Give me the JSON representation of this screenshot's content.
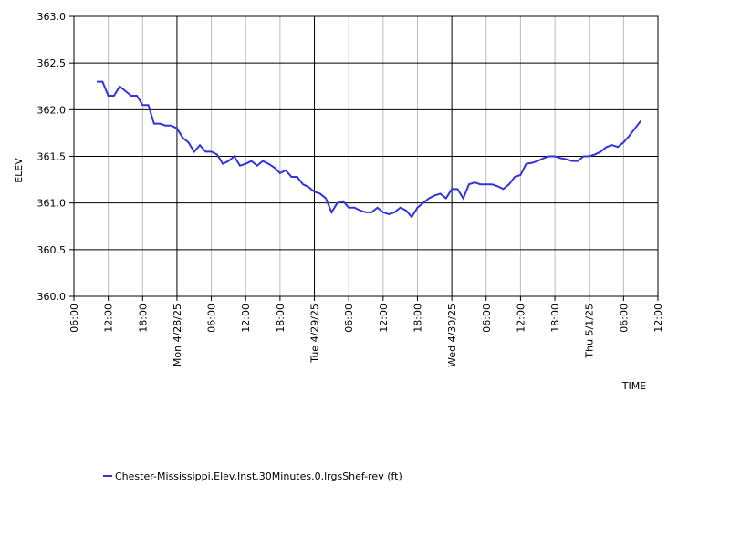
{
  "chart_data": {
    "type": "line",
    "x_label": "TIME",
    "y_label": "ELEV",
    "x": [
      "2025-04-27T10:00",
      "2025-04-27T11:00",
      "2025-04-27T12:00",
      "2025-04-27T13:00",
      "2025-04-27T14:00",
      "2025-04-27T15:00",
      "2025-04-27T16:00",
      "2025-04-27T17:00",
      "2025-04-27T18:00",
      "2025-04-27T19:00",
      "2025-04-27T20:00",
      "2025-04-27T21:00",
      "2025-04-27T22:00",
      "2025-04-27T23:00",
      "2025-04-28T00:00",
      "2025-04-28T01:00",
      "2025-04-28T02:00",
      "2025-04-28T03:00",
      "2025-04-28T04:00",
      "2025-04-28T05:00",
      "2025-04-28T06:00",
      "2025-04-28T07:00",
      "2025-04-28T08:00",
      "2025-04-28T09:00",
      "2025-04-28T10:00",
      "2025-04-28T11:00",
      "2025-04-28T12:00",
      "2025-04-28T13:00",
      "2025-04-28T14:00",
      "2025-04-28T15:00",
      "2025-04-28T16:00",
      "2025-04-28T17:00",
      "2025-04-28T18:00",
      "2025-04-28T19:00",
      "2025-04-28T20:00",
      "2025-04-28T21:00",
      "2025-04-28T22:00",
      "2025-04-28T23:00",
      "2025-04-29T00:00",
      "2025-04-29T01:00",
      "2025-04-29T02:00",
      "2025-04-29T03:00",
      "2025-04-29T04:00",
      "2025-04-29T05:00",
      "2025-04-29T06:00",
      "2025-04-29T07:00",
      "2025-04-29T08:00",
      "2025-04-29T09:00",
      "2025-04-29T10:00",
      "2025-04-29T11:00",
      "2025-04-29T12:00",
      "2025-04-29T13:00",
      "2025-04-29T14:00",
      "2025-04-29T15:00",
      "2025-04-29T16:00",
      "2025-04-29T17:00",
      "2025-04-29T18:00",
      "2025-04-29T19:00",
      "2025-04-29T20:00",
      "2025-04-29T21:00",
      "2025-04-29T22:00",
      "2025-04-29T23:00",
      "2025-04-30T00:00",
      "2025-04-30T01:00",
      "2025-04-30T02:00",
      "2025-04-30T03:00",
      "2025-04-30T04:00",
      "2025-04-30T05:00",
      "2025-04-30T06:00",
      "2025-04-30T07:00",
      "2025-04-30T08:00",
      "2025-04-30T09:00",
      "2025-04-30T10:00",
      "2025-04-30T11:00",
      "2025-04-30T12:00",
      "2025-04-30T13:00",
      "2025-04-30T14:00",
      "2025-04-30T15:00",
      "2025-04-30T16:00",
      "2025-04-30T17:00",
      "2025-04-30T18:00",
      "2025-04-30T19:00",
      "2025-04-30T20:00",
      "2025-04-30T21:00",
      "2025-04-30T22:00",
      "2025-04-30T23:00",
      "2025-05-01T00:00",
      "2025-05-01T01:00",
      "2025-05-01T02:00",
      "2025-05-01T03:00",
      "2025-05-01T04:00",
      "2025-05-01T05:00",
      "2025-05-01T06:00",
      "2025-05-01T07:00",
      "2025-05-01T08:00",
      "2025-05-01T09:00"
    ],
    "series": [
      {
        "name": "Chester-Mississippi.Elev.Inst.30Minutes.0.lrgsShef-rev (ft)",
        "color": "#3333dd",
        "values": [
          362.3,
          362.3,
          362.15,
          362.15,
          362.25,
          362.2,
          362.15,
          362.15,
          362.05,
          362.05,
          361.85,
          361.85,
          361.83,
          361.83,
          361.8,
          361.7,
          361.65,
          361.55,
          361.62,
          361.55,
          361.55,
          361.52,
          361.42,
          361.45,
          361.5,
          361.4,
          361.42,
          361.45,
          361.4,
          361.45,
          361.42,
          361.38,
          361.32,
          361.35,
          361.28,
          361.28,
          361.2,
          361.17,
          361.12,
          361.1,
          361.05,
          360.9,
          361.0,
          361.02,
          360.95,
          360.95,
          360.92,
          360.9,
          360.9,
          360.95,
          360.9,
          360.88,
          360.9,
          360.95,
          360.92,
          360.85,
          360.95,
          361.0,
          361.05,
          361.08,
          361.1,
          361.05,
          361.15,
          361.15,
          361.05,
          361.2,
          361.22,
          361.2,
          361.2,
          361.2,
          361.18,
          361.15,
          361.2,
          361.28,
          361.3,
          361.42,
          361.43,
          361.45,
          361.48,
          361.5,
          361.5,
          361.48,
          361.47,
          361.45,
          361.45,
          361.5,
          361.5,
          361.52,
          361.55,
          361.6,
          361.62,
          361.6,
          361.65,
          361.72,
          361.8,
          361.88
        ]
      }
    ],
    "xlim": [
      "2025-04-27T06:00",
      "2025-05-01T12:00"
    ],
    "xticks": [
      {
        "value": "2025-04-27T06:00",
        "label": "06:00"
      },
      {
        "value": "2025-04-27T12:00",
        "label": "12:00"
      },
      {
        "value": "2025-04-27T18:00",
        "label": "18:00"
      },
      {
        "value": "2025-04-28T00:00",
        "label": "Mon 4/28/25"
      },
      {
        "value": "2025-04-28T06:00",
        "label": "06:00"
      },
      {
        "value": "2025-04-28T12:00",
        "label": "12:00"
      },
      {
        "value": "2025-04-28T18:00",
        "label": "18:00"
      },
      {
        "value": "2025-04-29T00:00",
        "label": "Tue 4/29/25"
      },
      {
        "value": "2025-04-29T06:00",
        "label": "06:00"
      },
      {
        "value": "2025-04-29T12:00",
        "label": "12:00"
      },
      {
        "value": "2025-04-29T18:00",
        "label": "18:00"
      },
      {
        "value": "2025-04-30T00:00",
        "label": "Wed 4/30/25"
      },
      {
        "value": "2025-04-30T06:00",
        "label": "06:00"
      },
      {
        "value": "2025-04-30T12:00",
        "label": "12:00"
      },
      {
        "value": "2025-04-30T18:00",
        "label": "18:00"
      },
      {
        "value": "2025-05-01T00:00",
        "label": "Thu 5/1/25"
      },
      {
        "value": "2025-05-01T06:00",
        "label": "06:00"
      },
      {
        "value": "2025-05-01T12:00",
        "label": "12:00"
      }
    ],
    "ylim": [
      360,
      363
    ],
    "yticks": [
      {
        "value": 360,
        "label": "360.0"
      },
      {
        "value": 360.5,
        "label": "360.5"
      },
      {
        "value": 361,
        "label": "361.0"
      },
      {
        "value": 361.5,
        "label": "361.5"
      },
      {
        "value": 362,
        "label": "362.0"
      },
      {
        "value": 362.5,
        "label": "362.5"
      },
      {
        "value": 363,
        "label": "363.0"
      }
    ],
    "grid": true
  }
}
